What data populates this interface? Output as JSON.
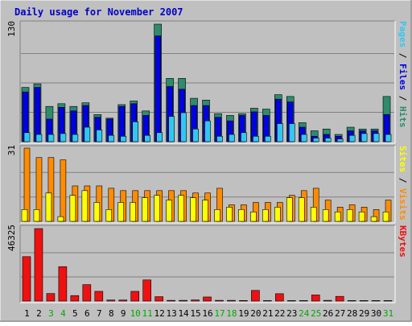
{
  "chart_data": [
    {
      "type": "bar",
      "title": "Daily usage for November 2007",
      "categories": [
        "1",
        "2",
        "3",
        "4",
        "5",
        "6",
        "7",
        "8",
        "9",
        "10",
        "11",
        "12",
        "13",
        "14",
        "15",
        "16",
        "17",
        "18",
        "19",
        "20",
        "21",
        "22",
        "23",
        "24",
        "25",
        "26",
        "27",
        "28",
        "29",
        "30",
        "31"
      ],
      "weekend_days": [
        "3",
        "4",
        "10",
        "11",
        "17",
        "18",
        "24",
        "25",
        "31"
      ],
      "ymax_label": "130",
      "right_labels": [
        "Pages",
        "Files",
        "Hits"
      ],
      "right_label_separator": " / ",
      "series": [
        {
          "name": "Hits",
          "color": "#2e8b6b",
          "values": [
            60,
            64,
            39,
            42,
            39,
            43,
            30,
            26,
            41,
            45,
            34,
            130,
            70,
            70,
            48,
            46,
            31,
            29,
            31,
            37,
            36,
            52,
            50,
            21,
            12,
            14,
            8,
            16,
            14,
            14,
            50
          ]
        },
        {
          "name": "Files",
          "color": "#0000e0",
          "values": [
            55,
            60,
            25,
            38,
            34,
            40,
            27,
            25,
            39,
            42,
            29,
            117,
            61,
            58,
            40,
            40,
            27,
            23,
            29,
            33,
            29,
            47,
            44,
            16,
            6,
            8,
            6,
            12,
            12,
            12,
            30
          ]
        },
        {
          "name": "Pages",
          "color": "#33c7f0",
          "values": [
            10,
            8,
            8,
            9,
            8,
            16,
            13,
            7,
            6,
            22,
            7,
            10,
            28,
            32,
            14,
            23,
            6,
            8,
            10,
            6,
            6,
            20,
            20,
            8,
            4,
            4,
            3,
            7,
            9,
            9,
            8
          ]
        }
      ]
    },
    {
      "type": "bar",
      "ymax_label": "31",
      "right_labels": [
        "Sites",
        "Visits"
      ],
      "right_label_separator": " / ",
      "series": [
        {
          "name": "Visits",
          "color": "#ff8c00",
          "values": [
            31,
            27,
            27,
            26,
            15,
            15,
            15,
            14,
            13,
            13,
            13,
            13,
            13,
            13,
            12,
            12,
            14,
            7,
            7,
            8,
            8,
            8,
            11,
            13,
            14,
            9,
            6,
            7,
            6,
            5,
            9
          ]
        },
        {
          "name": "Sites",
          "color": "#ffff00",
          "values": [
            5,
            5,
            12,
            2,
            11,
            13,
            8,
            5,
            8,
            8,
            10,
            11,
            9,
            11,
            10,
            9,
            5,
            6,
            5,
            4,
            5,
            6,
            10,
            10,
            6,
            5,
            4,
            5,
            4,
            2,
            4
          ]
        }
      ]
    },
    {
      "type": "bar",
      "ymax_label": "46325",
      "right_labels": [
        "KBytes"
      ],
      "right_label_separator": "",
      "series": [
        {
          "name": "KBytes",
          "color": "#ee1111",
          "values": [
            28400,
            46325,
            4800,
            22000,
            3500,
            10500,
            6200,
            650,
            650,
            6200,
            13500,
            2800,
            450,
            450,
            700,
            2600,
            450,
            450,
            350,
            6800,
            300,
            4700,
            300,
            300,
            3900,
            450,
            3000,
            300,
            300,
            300,
            300
          ]
        }
      ]
    }
  ],
  "colors": {
    "background": "#c0c0c0",
    "frame_light": "#ffffff",
    "frame_dark": "#808080",
    "title_color": "#0000cc",
    "weekday_label": "#000000",
    "weekend_label": "#00aa00",
    "gridline": "#808080"
  }
}
